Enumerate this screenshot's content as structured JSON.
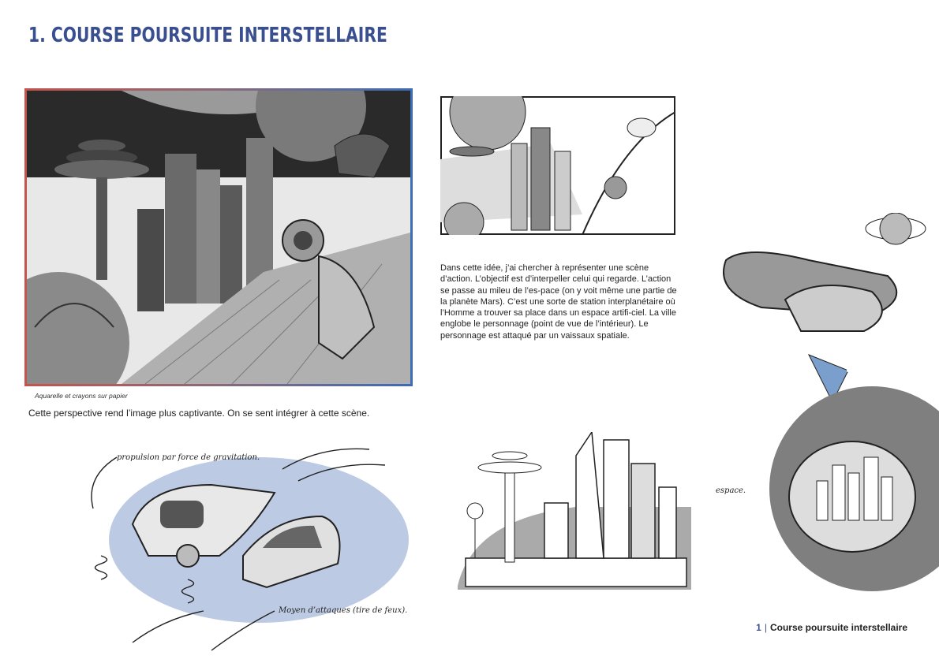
{
  "page": {
    "title": "1. COURSE POURSUITE INTERSTELLAIRE"
  },
  "main_illustration": {
    "caption": "Aquarelle et crayons sur papier"
  },
  "perspective_text": "Cette perspective rend l’image plus captivante. On se sent intégrer à cette scène.",
  "description": "Dans cette idée, j’ai chercher à représenter une scène d’action. L’objectif est d’interpeller celui qui regarde. L’action se passe au mileu de l’es-pace (on y voit même une partie de la planète Mars). C’est une sorte de station interplanétaire où l’Homme a trouver sa place dans un espace artifi-ciel. La ville englobe le personnage (point de vue de l’intérieur). Le personnage est attaqué par un vaissaux spatiale.",
  "annotations": {
    "propulsion": "propulsion par force de gravitation.",
    "attack": "Moyen d’attaques (tire de feux).",
    "space": "espace."
  },
  "footer": {
    "number": "1",
    "separator": "|",
    "label": "Course poursuite interstellaire"
  },
  "colors": {
    "title": "#3a4f8f",
    "frame_left": "#c4544c",
    "frame_right": "#3d6cb5",
    "watercolor_blue": "#9fb3d8"
  }
}
